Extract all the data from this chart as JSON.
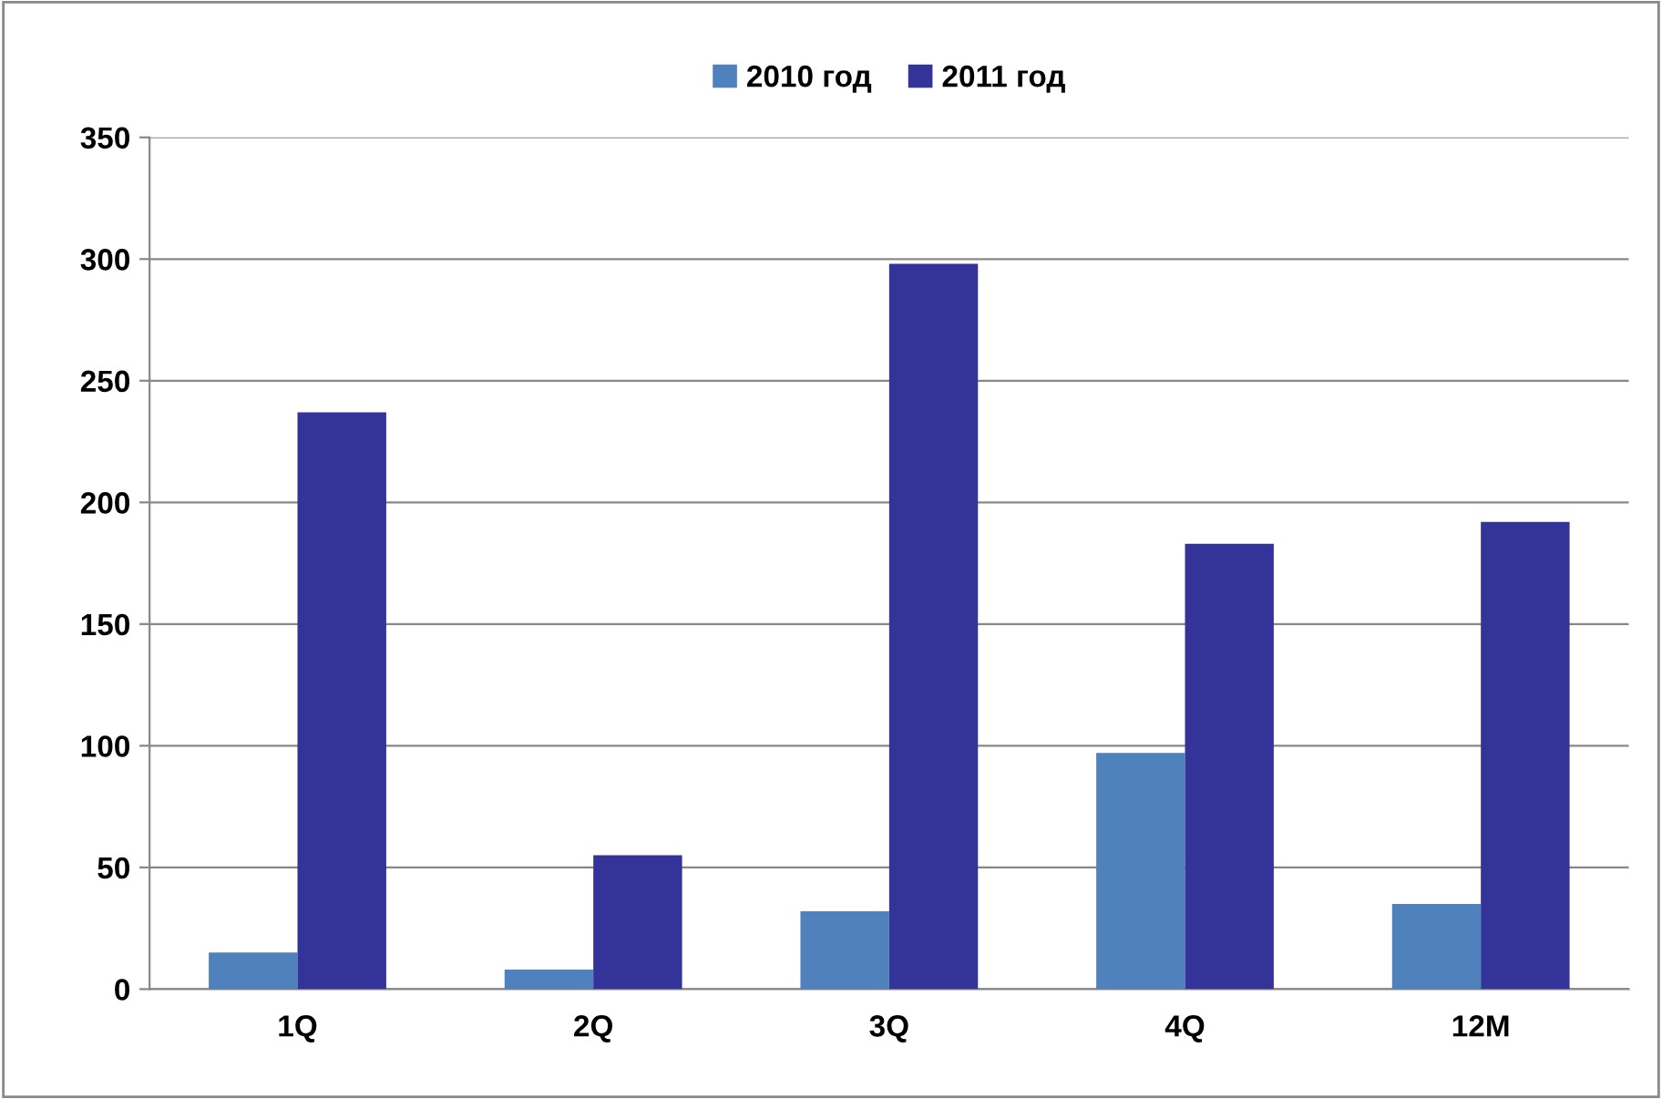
{
  "chart_data": {
    "type": "bar",
    "categories": [
      "1Q",
      "2Q",
      "3Q",
      "4Q",
      "12M"
    ],
    "series": [
      {
        "name": "2010 год",
        "color": "#4f81bd",
        "values": [
          15,
          8,
          32,
          97,
          35
        ]
      },
      {
        "name": "2011 год",
        "color": "#333399",
        "values": [
          237,
          55,
          298,
          183,
          192
        ]
      }
    ],
    "ylim": [
      0,
      350
    ],
    "yticks": [
      0,
      50,
      100,
      150,
      200,
      250,
      300,
      350
    ],
    "grid": "y",
    "legend": "top"
  }
}
